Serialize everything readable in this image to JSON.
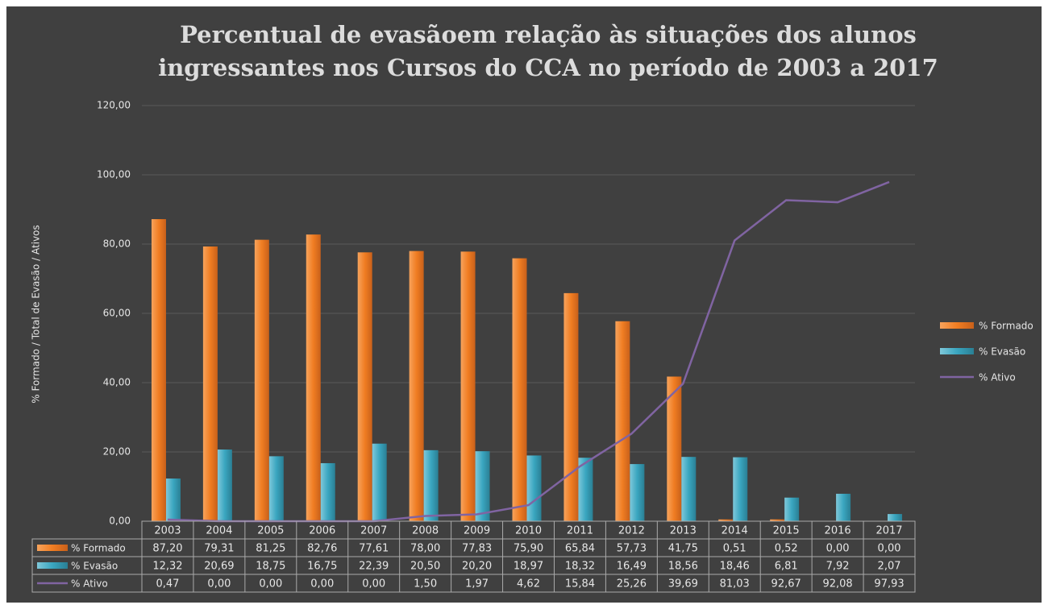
{
  "chart_data": {
    "type": "bar",
    "title": "Percentual de evasãoem relação às situações dos alunos ingressantes nos  Cursos do CCA no período de 2003 a 2017",
    "title_lines": [
      "Percentual de evasãoem relação às situações dos alunos",
      "ingressantes nos  Cursos do CCA no período de 2003 a 2017"
    ],
    "y_axis_label": "% Formado / Total de Evasão / Ativos",
    "categories": [
      "2003",
      "2004",
      "2005",
      "2006",
      "2007",
      "2008",
      "2009",
      "2010",
      "2011",
      "2012",
      "2013",
      "2014",
      "2015",
      "2016",
      "2017"
    ],
    "series": [
      {
        "name": "% Formado",
        "type": "bar",
        "color": "#f07d22",
        "values": [
          87.2,
          79.31,
          81.25,
          82.76,
          77.61,
          78.0,
          77.83,
          75.9,
          65.84,
          57.73,
          41.75,
          0.51,
          0.52,
          0.0,
          0.0
        ],
        "value_labels": [
          "87,20",
          "79,31",
          "81,25",
          "82,76",
          "77,61",
          "78,00",
          "77,83",
          "75,90",
          "65,84",
          "57,73",
          "41,75",
          "0,51",
          "0,52",
          "0,00",
          "0,00"
        ]
      },
      {
        "name": "% Evasão",
        "type": "bar",
        "color": "#3aa6c0",
        "values": [
          12.32,
          20.69,
          18.75,
          16.75,
          22.39,
          20.5,
          20.2,
          18.97,
          18.32,
          16.49,
          18.56,
          18.46,
          6.81,
          7.92,
          2.07
        ],
        "value_labels": [
          "12,32",
          "20,69",
          "18,75",
          "16,75",
          "22,39",
          "20,50",
          "20,20",
          "18,97",
          "18,32",
          "16,49",
          "18,56",
          "18,46",
          "6,81",
          "7,92",
          "2,07"
        ]
      },
      {
        "name": "% Ativo",
        "type": "line",
        "color": "#8064a2",
        "values": [
          0.47,
          0.0,
          0.0,
          0.0,
          0.0,
          1.5,
          1.97,
          4.62,
          15.84,
          25.26,
          39.69,
          81.03,
          92.67,
          92.08,
          97.93
        ],
        "value_labels": [
          "0,47",
          "0,00",
          "0,00",
          "0,00",
          "0,00",
          "1,50",
          "1,97",
          "4,62",
          "15,84",
          "25,26",
          "39,69",
          "81,03",
          "92,67",
          "92,08",
          "97,93"
        ]
      }
    ],
    "ylim": [
      0,
      120
    ],
    "yticks": [
      {
        "value": 0,
        "label": "0,00"
      },
      {
        "value": 20,
        "label": "20,00"
      },
      {
        "value": 40,
        "label": "40,00"
      },
      {
        "value": 60,
        "label": "60,00"
      },
      {
        "value": 80,
        "label": "80,00"
      },
      {
        "value": 100,
        "label": "100,00"
      },
      {
        "value": 120,
        "label": "120,00"
      }
    ],
    "grid": true,
    "legend": "right"
  }
}
